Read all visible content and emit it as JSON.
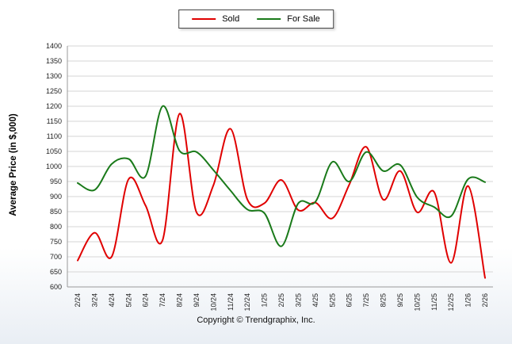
{
  "footer": {
    "copyright": "Copyright © Trendgraphix, Inc."
  },
  "chart_data": {
    "type": "line",
    "title": "",
    "xlabel": "",
    "ylabel": "Average Price (in $,000)",
    "ylim": [
      600,
      1400
    ],
    "ytick_step": 50,
    "grid": "horizontal",
    "legend_position": "top-center",
    "line_style": "smooth",
    "categories": [
      "2/24",
      "3/24",
      "4/24",
      "5/24",
      "6/24",
      "7/24",
      "8/24",
      "9/24",
      "10/24",
      "11/24",
      "12/24",
      "1/25",
      "2/25",
      "3/25",
      "4/25",
      "5/25",
      "6/25",
      "7/25",
      "8/25",
      "9/25",
      "10/25",
      "11/25",
      "12/25",
      "1/26",
      "2/26"
    ],
    "series": [
      {
        "name": "Sold",
        "color": "#e00000",
        "values": [
          688,
          780,
          700,
          958,
          870,
          755,
          1175,
          848,
          938,
          1125,
          890,
          878,
          955,
          855,
          880,
          828,
          940,
          1065,
          890,
          985,
          848,
          915,
          680,
          935,
          630
        ]
      },
      {
        "name": "For Sale",
        "color": "#1a7a1a",
        "values": [
          945,
          922,
          1008,
          1025,
          968,
          1200,
          1052,
          1048,
          988,
          920,
          857,
          845,
          735,
          878,
          882,
          1015,
          950,
          1048,
          985,
          1005,
          898,
          865,
          835,
          958,
          948
        ]
      }
    ]
  }
}
